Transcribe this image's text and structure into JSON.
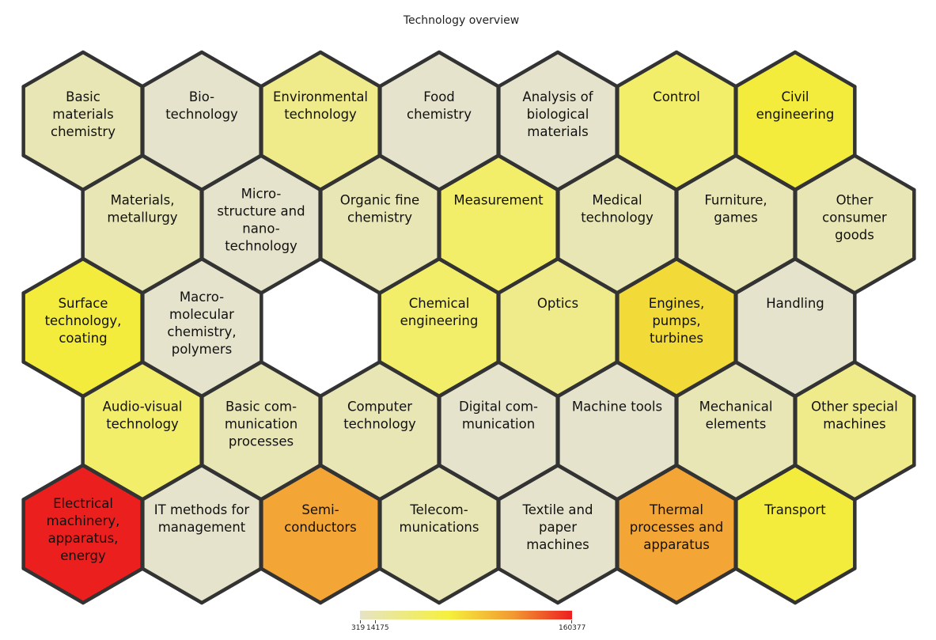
{
  "title": "Technology overview",
  "legend": {
    "min": "319",
    "mid": "14175",
    "max": "160377"
  },
  "colors": {
    "pale": "#e5e3cb",
    "light": "#e8e6b5",
    "lightyellow": "#efeb8a",
    "yellow": "#f3ee6a",
    "brightyellow": "#f3ec3c",
    "amber": "#f2da38",
    "orange": "#f3a535",
    "red": "#ec1f1f",
    "thin_border": "#444444",
    "group_border": "#333333"
  },
  "cells": [
    {
      "row": 0,
      "col": 0,
      "lines": [
        "Basic",
        "materials",
        "chemistry"
      ],
      "color": "light",
      "group": "chem"
    },
    {
      "row": 0,
      "col": 1,
      "lines": [
        "Bio-",
        "technology"
      ],
      "color": "pale",
      "group": "chem"
    },
    {
      "row": 0,
      "col": 2,
      "lines": [
        "Environmental",
        "technology"
      ],
      "color": "lightyellow",
      "group": "chem"
    },
    {
      "row": 0,
      "col": 3,
      "lines": [
        "Food",
        "chemistry"
      ],
      "color": "pale",
      "group": "chem"
    },
    {
      "row": 0,
      "col": 4,
      "lines": [
        "Analysis of",
        "biological",
        "materials"
      ],
      "color": "pale",
      "group": "instr"
    },
    {
      "row": 0,
      "col": 5,
      "lines": [
        "Control"
      ],
      "color": "yellow",
      "group": "instr"
    },
    {
      "row": 0,
      "col": 6,
      "lines": [
        "Civil",
        "engineering"
      ],
      "color": "brightyellow",
      "group": "other"
    },
    {
      "row": 1,
      "col": 0,
      "lines": [
        "Materials,",
        "metallurgy"
      ],
      "color": "light",
      "group": "chem"
    },
    {
      "row": 1,
      "col": 1,
      "lines": [
        "Micro-",
        "structure and",
        "nano-",
        "technology"
      ],
      "color": "pale",
      "group": "chem"
    },
    {
      "row": 1,
      "col": 2,
      "lines": [
        "Organic fine",
        "chemistry"
      ],
      "color": "light",
      "group": "chem"
    },
    {
      "row": 1,
      "col": 3,
      "lines": [
        "Measurement"
      ],
      "color": "yellow",
      "group": "instr"
    },
    {
      "row": 1,
      "col": 4,
      "lines": [
        "Medical",
        "technology"
      ],
      "color": "light",
      "group": "instr"
    },
    {
      "row": 1,
      "col": 5,
      "lines": [
        "Furniture,",
        "games"
      ],
      "color": "light",
      "group": "other"
    },
    {
      "row": 1,
      "col": 6,
      "lines": [
        "Other",
        "consumer",
        "goods"
      ],
      "color": "light",
      "group": "other"
    },
    {
      "row": 2,
      "col": 0,
      "lines": [
        "Surface",
        "technology,",
        "coating"
      ],
      "color": "brightyellow",
      "group": "chem"
    },
    {
      "row": 2,
      "col": 1,
      "lines": [
        "Macro-",
        "molecular",
        "chemistry,",
        "polymers"
      ],
      "color": "pale",
      "group": "chem"
    },
    {
      "row": 2,
      "col": 3,
      "lines": [
        "Chemical",
        "engineering"
      ],
      "color": "yellow",
      "group": "mech"
    },
    {
      "row": 2,
      "col": 4,
      "lines": [
        "Optics"
      ],
      "color": "lightyellow",
      "group": "instr"
    },
    {
      "row": 2,
      "col": 5,
      "lines": [
        "Engines,",
        "pumps,",
        "turbines"
      ],
      "color": "amber",
      "group": "mech"
    },
    {
      "row": 2,
      "col": 6,
      "lines": [
        "Handling"
      ],
      "color": "pale",
      "group": "mech"
    },
    {
      "row": 3,
      "col": 0,
      "lines": [
        "Audio-visual",
        "technology"
      ],
      "color": "yellow",
      "group": "elec"
    },
    {
      "row": 3,
      "col": 1,
      "lines": [
        "Basic com-",
        "munication",
        "processes"
      ],
      "color": "light",
      "group": "elec"
    },
    {
      "row": 3,
      "col": 2,
      "lines": [
        "Computer",
        "technology"
      ],
      "color": "light",
      "group": "elec"
    },
    {
      "row": 3,
      "col": 3,
      "lines": [
        "Digital com-",
        "munication"
      ],
      "color": "pale",
      "group": "elec"
    },
    {
      "row": 3,
      "col": 4,
      "lines": [
        "Machine tools"
      ],
      "color": "pale",
      "group": "mech"
    },
    {
      "row": 3,
      "col": 5,
      "lines": [
        "Mechanical",
        "elements"
      ],
      "color": "light",
      "group": "mech"
    },
    {
      "row": 3,
      "col": 6,
      "lines": [
        "Other special",
        "machines"
      ],
      "color": "lightyellow",
      "group": "mech"
    },
    {
      "row": 4,
      "col": 0,
      "lines": [
        "Electrical",
        "machinery,",
        "apparatus,",
        "energy"
      ],
      "color": "red",
      "group": "elec"
    },
    {
      "row": 4,
      "col": 1,
      "lines": [
        "IT methods for",
        "management"
      ],
      "color": "pale",
      "group": "elec"
    },
    {
      "row": 4,
      "col": 2,
      "lines": [
        "Semi-",
        "conductors"
      ],
      "color": "orange",
      "group": "elec"
    },
    {
      "row": 4,
      "col": 3,
      "lines": [
        "Telecom-",
        "munications"
      ],
      "color": "light",
      "group": "elec"
    },
    {
      "row": 4,
      "col": 4,
      "lines": [
        "Textile and",
        "paper",
        "machines"
      ],
      "color": "pale",
      "group": "mech"
    },
    {
      "row": 4,
      "col": 5,
      "lines": [
        "Thermal",
        "processes and",
        "apparatus"
      ],
      "color": "orange",
      "group": "mech"
    },
    {
      "row": 4,
      "col": 6,
      "lines": [
        "Transport"
      ],
      "color": "brightyellow",
      "group": "mech"
    }
  ]
}
